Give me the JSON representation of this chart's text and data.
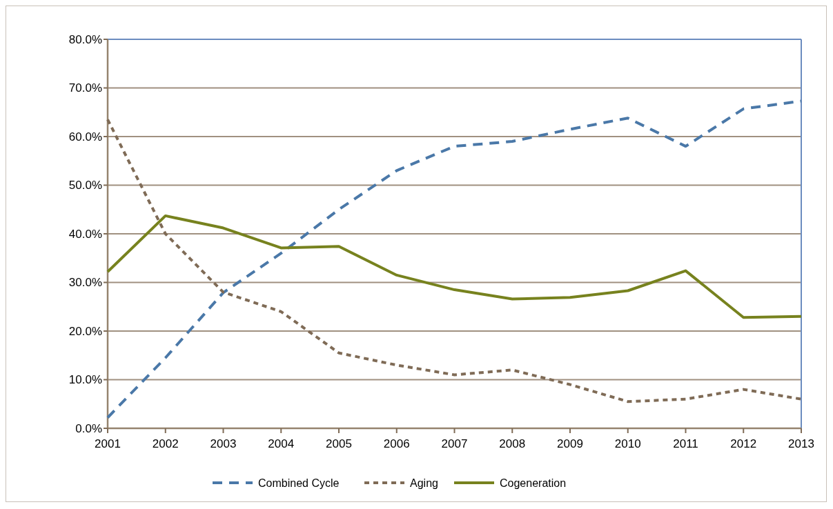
{
  "chart_data": {
    "type": "line",
    "x": [
      2001,
      2002,
      2003,
      2004,
      2005,
      2006,
      2007,
      2008,
      2009,
      2010,
      2011,
      2012,
      2013
    ],
    "xlim": [
      2001,
      2013
    ],
    "xticks": [
      2001,
      2002,
      2003,
      2004,
      2005,
      2006,
      2007,
      2008,
      2009,
      2010,
      2011,
      2012,
      2013
    ],
    "ylim": [
      0,
      80
    ],
    "yticks": [
      {
        "value": 0,
        "label": "0.0%"
      },
      {
        "value": 10,
        "label": "10.0%"
      },
      {
        "value": 20,
        "label": "20.0%"
      },
      {
        "value": 30,
        "label": "30.0%"
      },
      {
        "value": 40,
        "label": "40.0%"
      },
      {
        "value": 50,
        "label": "50.0%"
      },
      {
        "value": 60,
        "label": "60.0%"
      },
      {
        "value": 70,
        "label": "70.0%"
      },
      {
        "value": 80,
        "label": "80.0%"
      }
    ],
    "grid": "y",
    "legend": "bottom",
    "series": [
      {
        "name": "Combined Cycle",
        "color": "#4a78a8",
        "line_style": "dashed",
        "values": [
          2.2,
          14.5,
          27.9,
          36,
          45,
          53,
          58,
          59,
          61.5,
          63.8,
          58,
          65.7,
          67.3
        ]
      },
      {
        "name": "Aging",
        "color": "#7f6b56",
        "line_style": "dotted",
        "values": [
          63.5,
          40,
          28,
          24,
          15.5,
          13,
          11,
          12,
          9,
          5.5,
          6,
          8,
          6
        ]
      },
      {
        "name": "Cogeneration",
        "color": "#77821e",
        "line_style": "solid",
        "values": [
          32.2,
          43.7,
          41.2,
          37.1,
          37.4,
          31.5,
          28.5,
          26.6,
          26.9,
          28.3,
          32.4,
          22.8,
          23
        ]
      }
    ]
  }
}
